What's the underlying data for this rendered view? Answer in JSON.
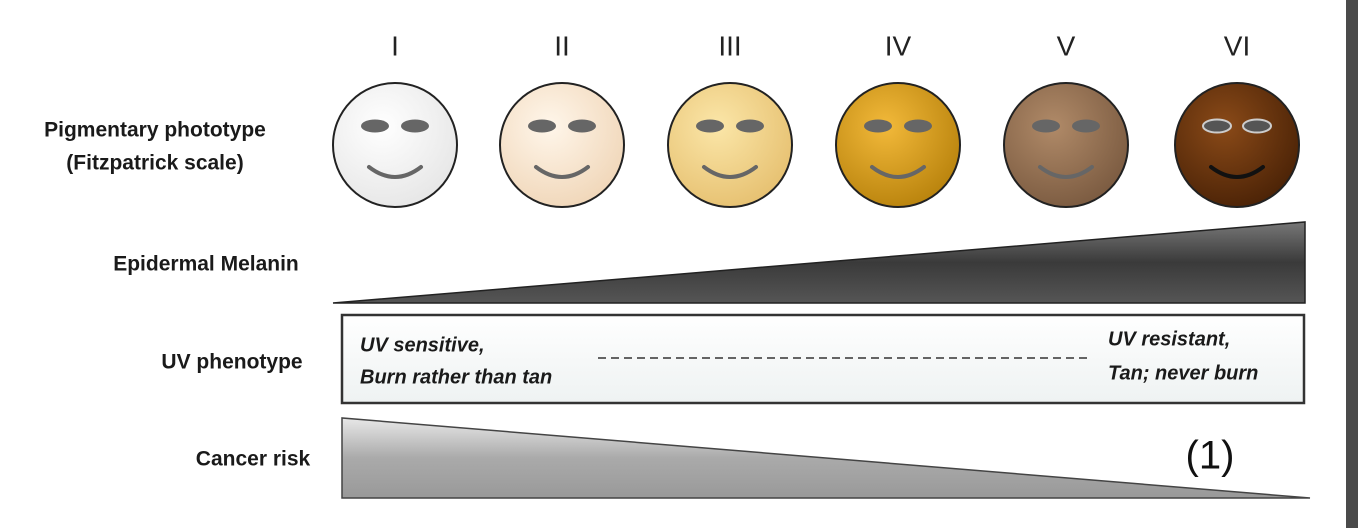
{
  "phototypes": [
    "I",
    "II",
    "III",
    "IV",
    "V",
    "VI"
  ],
  "rows": {
    "pigmentary": {
      "lines": [
        "Pigmentary phototype",
        "(Fitzpatrick scale)"
      ]
    },
    "melanin": {
      "label": "Epidermal Melanin"
    },
    "uv": {
      "label": "UV phenotype",
      "left": [
        "UV sensitive,",
        "Burn rather than tan"
      ],
      "right": [
        "UV resistant,",
        "Tan; never burn"
      ]
    },
    "cancer": {
      "label": "Cancer risk"
    }
  },
  "annotation": "(1)"
}
